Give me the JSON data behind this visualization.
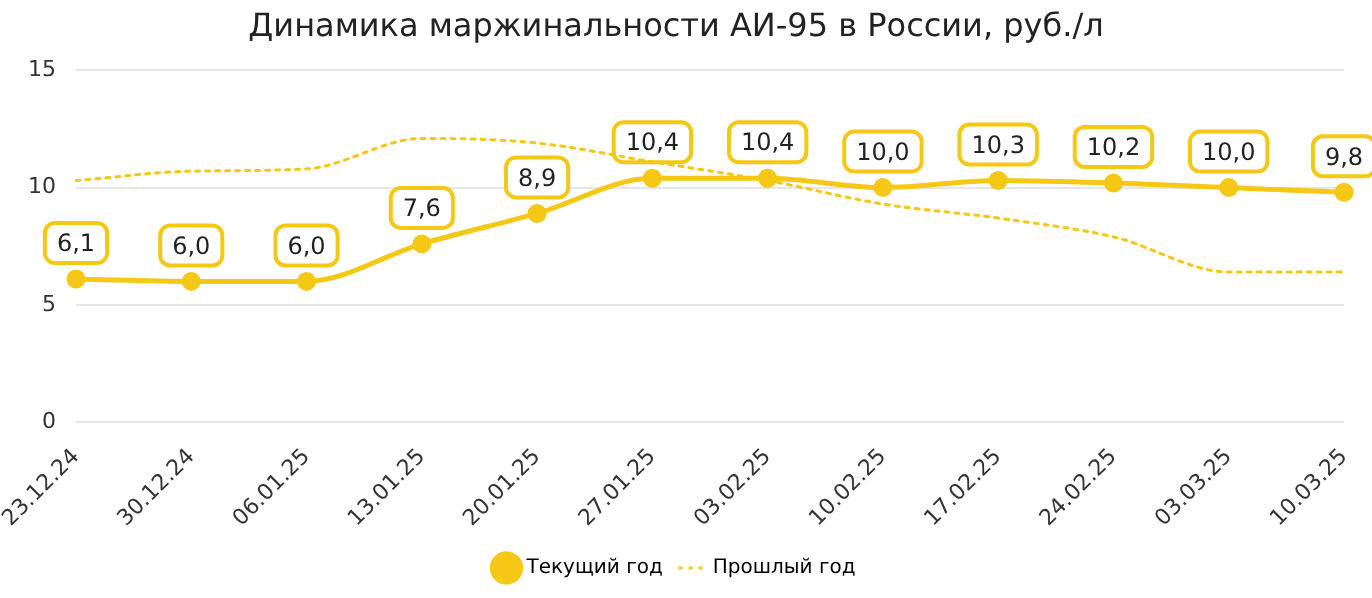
{
  "chart_data": {
    "type": "line",
    "title": "Динамика маржинальности АИ-95 в России, руб./л",
    "categories": [
      "23.12.24",
      "30.12.24",
      "06.01.25",
      "13.01.25",
      "20.01.25",
      "27.01.25",
      "03.02.25",
      "10.02.25",
      "17.02.25",
      "24.02.25",
      "03.03.25",
      "10.03.25"
    ],
    "series": [
      {
        "name": "Текущий год",
        "color": "#f5c816",
        "marker": "circle",
        "line_style": "solid",
        "values": [
          6.1,
          6.0,
          6.0,
          7.6,
          8.9,
          10.4,
          10.4,
          10.0,
          10.3,
          10.2,
          10.0,
          9.8
        ],
        "value_labels": [
          "6,1",
          "6,0",
          "6,0",
          "7,6",
          "8,9",
          "10,4",
          "10,4",
          "10,0",
          "10,3",
          "10,2",
          "10,0",
          "9,8"
        ]
      },
      {
        "name": "Прошлый год",
        "color": "#f5c816",
        "marker": "none",
        "line_style": "dotted",
        "values": [
          10.3,
          10.7,
          10.8,
          12.1,
          11.9,
          11.1,
          10.3,
          9.3,
          8.7,
          7.9,
          6.4,
          6.4
        ]
      }
    ],
    "ylim": [
      0,
      15
    ],
    "yticks": [
      0,
      5,
      10,
      15
    ],
    "grid": "y",
    "legend": "bottom"
  }
}
